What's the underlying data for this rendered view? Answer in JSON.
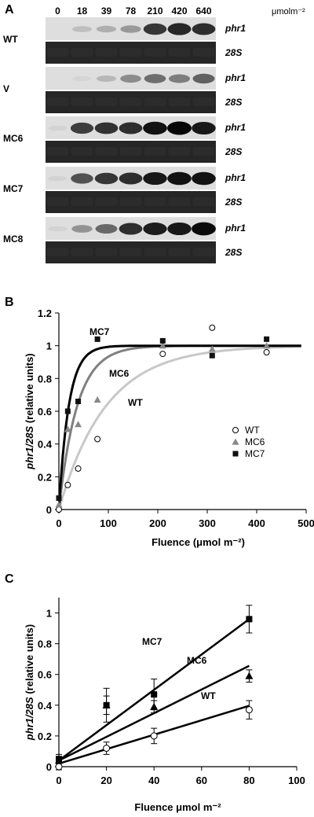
{
  "panel_a": {
    "letter": "A",
    "fluences": [
      "0",
      "18",
      "39",
      "78",
      "210",
      "420",
      "640"
    ],
    "unit": "μmolm⁻²",
    "blots": [
      {
        "label": "WT",
        "gene": "phr1",
        "control": "28S",
        "intensity": [
          0.0,
          0.15,
          0.22,
          0.32,
          0.78,
          0.85,
          0.82
        ]
      },
      {
        "label": "V",
        "gene": "phr1",
        "control": "28S",
        "intensity": [
          0.0,
          0.04,
          0.18,
          0.38,
          0.52,
          0.45,
          0.58
        ]
      },
      {
        "label": "MC6",
        "gene": "phr1",
        "control": "28S",
        "intensity": [
          0.05,
          0.75,
          0.8,
          0.82,
          0.95,
          1.0,
          0.92
        ]
      },
      {
        "label": "MC7",
        "gene": "phr1",
        "control": "28S",
        "intensity": [
          0.05,
          0.65,
          0.78,
          0.82,
          0.92,
          0.95,
          0.95
        ]
      },
      {
        "label": "MC8",
        "gene": "phr1",
        "control": "28S",
        "intensity": [
          0.05,
          0.35,
          0.55,
          0.82,
          0.9,
          0.92,
          0.98
        ]
      }
    ]
  },
  "chart_data": [
    {
      "panel_letter": "B",
      "type": "scatter",
      "xlabel": "Fluence (μmol m⁻²)",
      "ylabel": "phr1/28S (relative units)",
      "xlim": [
        0,
        500
      ],
      "ylim": [
        0,
        1.2
      ],
      "xticks": [
        "0",
        "100",
        "200",
        "300",
        "400",
        "500"
      ],
      "yticks": [
        "0",
        "0.2",
        "0.4",
        "0.6",
        "0.8",
        "1",
        "1.2"
      ],
      "legend_position": "right",
      "series": [
        {
          "name": "WT",
          "marker": "open-circle",
          "color": "#000000",
          "curve_color": "#c8c8c8",
          "curve_label": "WT",
          "x": [
            0,
            18,
            39,
            78,
            210,
            310,
            420
          ],
          "y": [
            0.0,
            0.15,
            0.25,
            0.43,
            0.95,
            1.11,
            0.96
          ],
          "fit_k": 0.0105
        },
        {
          "name": "MC6",
          "marker": "triangle",
          "color": "#888888",
          "curve_color": "#808080",
          "curve_label": "MC6",
          "x": [
            0,
            18,
            39,
            78,
            210,
            310,
            420
          ],
          "y": [
            0.03,
            0.49,
            0.52,
            0.67,
            1.0,
            0.98,
            1.0
          ],
          "fit_k": 0.027
        },
        {
          "name": "MC7",
          "marker": "square",
          "color": "#111111",
          "curve_color": "#000000",
          "curve_label": "MC7",
          "x": [
            0,
            18,
            39,
            78,
            210,
            310,
            420
          ],
          "y": [
            0.07,
            0.6,
            0.66,
            1.04,
            1.03,
            0.94,
            1.04
          ],
          "fit_k": 0.05
        }
      ]
    },
    {
      "panel_letter": "C",
      "type": "scatter",
      "xlabel": "Fluence μmol m⁻²",
      "ylabel": "phr1/28S (relative units)",
      "xlim": [
        0,
        100
      ],
      "ylim": [
        0,
        1.1
      ],
      "xticks": [
        "0",
        "20",
        "40",
        "60",
        "80",
        "100"
      ],
      "yticks": [
        "0",
        "0.2",
        "0.4",
        "0.6",
        "0.8",
        "1"
      ],
      "series": [
        {
          "name": "WT",
          "marker": "open-circle",
          "curve_label": "WT",
          "x": [
            0,
            20,
            40,
            80
          ],
          "y": [
            0.0,
            0.12,
            0.2,
            0.37
          ],
          "err": [
            0.02,
            0.04,
            0.05,
            0.06
          ],
          "fit": [
            0.02,
            0.0047
          ]
        },
        {
          "name": "MC6",
          "marker": "triangle",
          "curve_label": "MC6",
          "x": [
            0,
            20,
            40,
            80
          ],
          "y": [
            0.04,
            0.4,
            0.39,
            0.59
          ],
          "err": [
            0.02,
            0.06,
            0.04,
            0.04
          ],
          "fit": [
            0.04,
            0.0077
          ]
        },
        {
          "name": "MC7",
          "marker": "square",
          "curve_label": "MC7",
          "x": [
            0,
            20,
            40,
            80
          ],
          "y": [
            0.05,
            0.4,
            0.47,
            0.96
          ],
          "err": [
            0.03,
            0.11,
            0.1,
            0.09
          ],
          "fit": [
            0.04,
            0.0115
          ]
        }
      ]
    }
  ]
}
